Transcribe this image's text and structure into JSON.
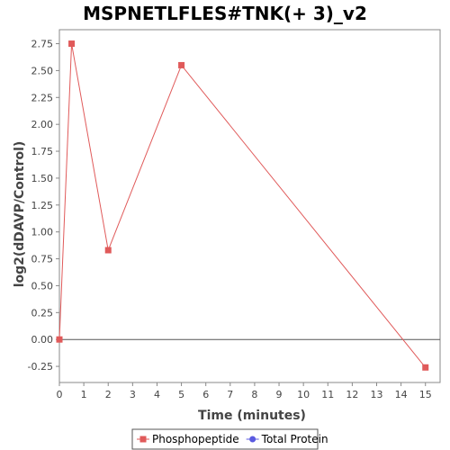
{
  "chart_data": {
    "type": "line",
    "title": "MSPNETLFLES#TNK(+ 3)_v2",
    "xlabel": "Time (minutes)",
    "ylabel": "log2(dDAVP/Control)",
    "xlim": [
      0,
      15.6
    ],
    "ylim": [
      -0.4,
      2.88
    ],
    "xticks": [
      0,
      1,
      2,
      3,
      4,
      5,
      6,
      7,
      8,
      9,
      10,
      11,
      12,
      13,
      14,
      15
    ],
    "xtick_labels": [
      "0",
      "1",
      "2",
      "3",
      "4",
      "5",
      "6",
      "7",
      "8",
      "9",
      "10",
      "11",
      "12",
      "13",
      "14",
      "15"
    ],
    "yticks": [
      -0.25,
      0,
      0.25,
      0.5,
      0.75,
      1.0,
      1.25,
      1.5,
      1.75,
      2.0,
      2.25,
      2.5,
      2.75
    ],
    "ytick_labels": [
      "-0.25",
      "0.00",
      "0.25",
      "0.50",
      "0.75",
      "1.00",
      "1.25",
      "1.50",
      "1.75",
      "2.00",
      "2.25",
      "2.50",
      "2.75"
    ],
    "zero_line": true,
    "grid": false,
    "legend_position": "bottom",
    "series": [
      {
        "name": "Phosphopeptide",
        "color": "#e05a5a",
        "marker": "square",
        "points": [
          {
            "x": 0,
            "y": 0.0
          },
          {
            "x": 0.5,
            "y": 2.75
          },
          {
            "x": 2,
            "y": 0.83
          },
          {
            "x": 5,
            "y": 2.55
          },
          {
            "x": 15,
            "y": -0.26
          }
        ]
      },
      {
        "name": "Total Protein",
        "color": "#5a5ae0",
        "marker": "circle",
        "points": []
      }
    ]
  }
}
